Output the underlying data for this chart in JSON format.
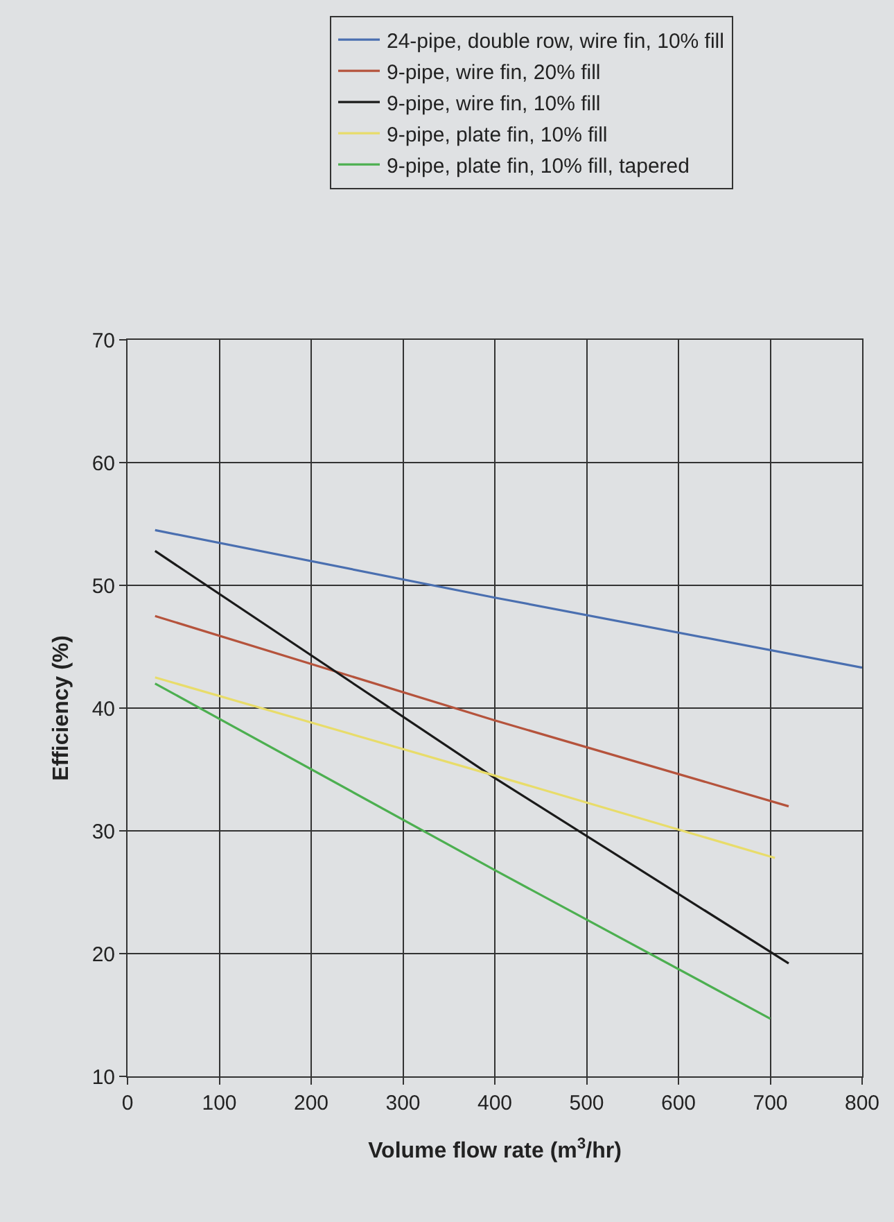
{
  "chart_data": {
    "type": "line",
    "xlabel": "Volume flow rate (m$^{3}$/hr)",
    "ylabel": "Efficiency (%)",
    "series": [
      {
        "name": "24-pipe, double row, wire fin, 10% fill",
        "color": "#4a6fb0",
        "x": [
          30,
          400,
          800
        ],
        "values": [
          54.5,
          49,
          43.3
        ]
      },
      {
        "name": "9-pipe, wire fin, 20% fill",
        "color": "#b5533c",
        "x": [
          30,
          400,
          720
        ],
        "values": [
          47.5,
          39,
          32
        ]
      },
      {
        "name": "9-pipe, wire fin, 10% fill",
        "color": "#1a1a1a",
        "x": [
          30,
          400,
          720
        ],
        "values": [
          52.8,
          34.3,
          19.2
        ]
      },
      {
        "name": "9-pipe, plate fin, 10% fill",
        "color": "#e8dc6a",
        "x": [
          30,
          400,
          705
        ],
        "values": [
          42.5,
          34.5,
          27.8
        ]
      },
      {
        "name": "9-pipe, plate fin, 10% fill, tapered",
        "color": "#4caf50",
        "x": [
          30,
          400,
          700
        ],
        "values": [
          42,
          26.8,
          14.7
        ]
      }
    ],
    "xlim": [
      0,
      800
    ],
    "xticks": [
      0,
      100,
      200,
      300,
      400,
      500,
      600,
      700,
      800
    ],
    "ylim": [
      10,
      70
    ],
    "yticks": [
      10,
      20,
      30,
      40,
      50,
      60,
      70
    ],
    "grid": true,
    "legend": "top",
    "marker": "none",
    "line_style": "solid"
  }
}
